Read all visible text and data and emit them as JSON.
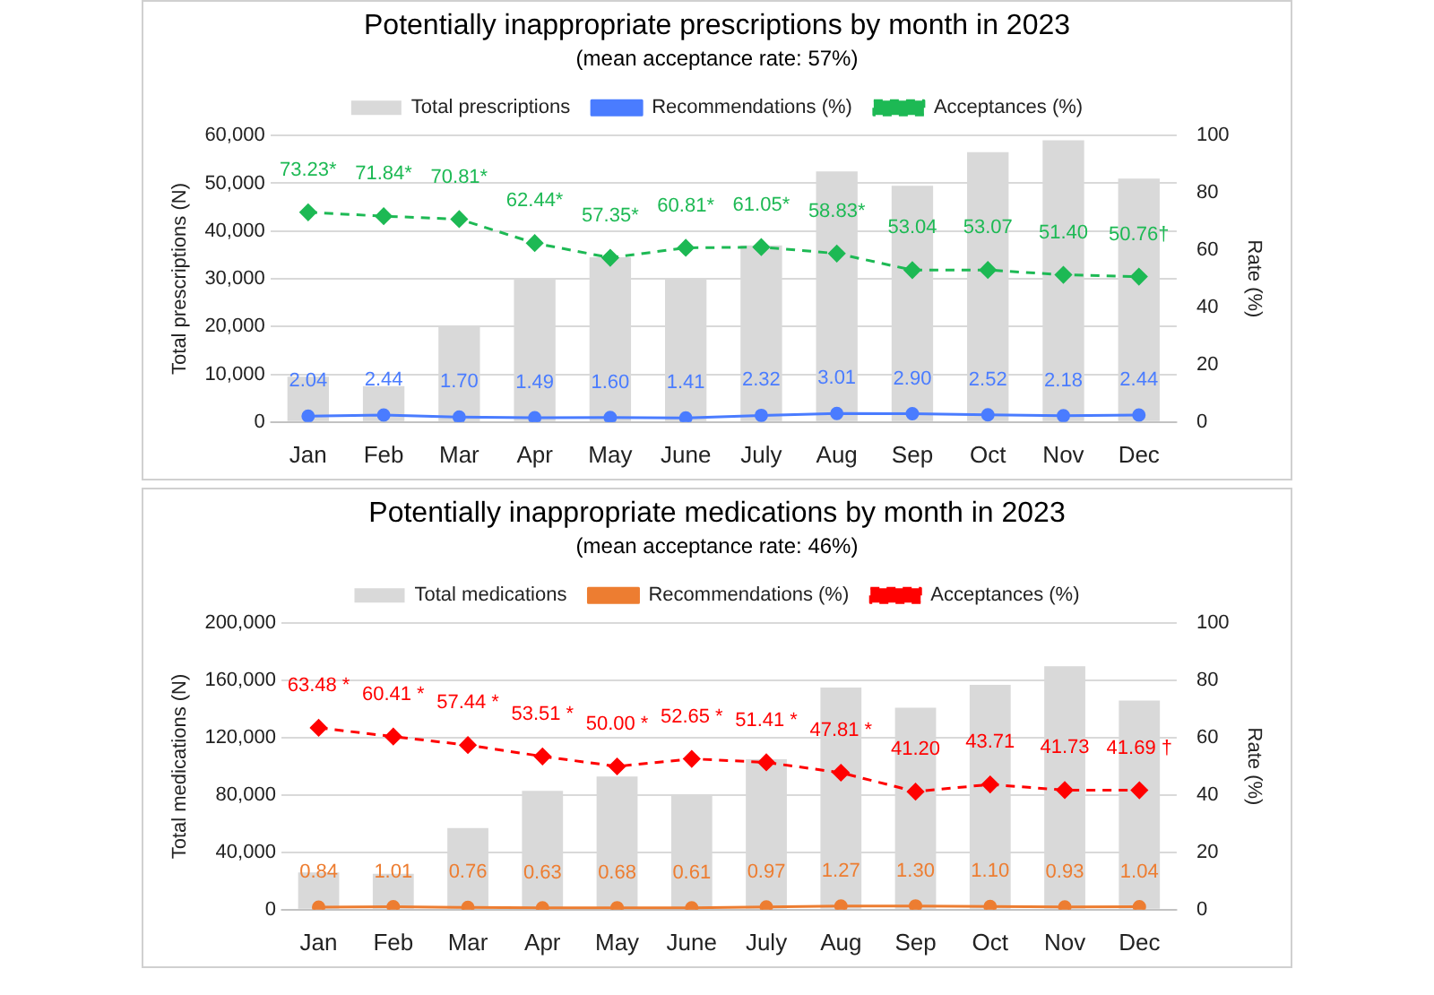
{
  "chart_data": [
    {
      "type": "bar",
      "title": "Potentially inappropriate prescriptions by month in 2023",
      "subtitle": "(mean acceptance rate: 57%)",
      "ylabel": "Total prescriptions (N)",
      "y2label": "Rate (%)",
      "categories": [
        "Jan",
        "Feb",
        "Mar",
        "Apr",
        "May",
        "June",
        "July",
        "Aug",
        "Sep",
        "Oct",
        "Nov",
        "Dec"
      ],
      "series": [
        {
          "name": "Total prescriptions",
          "color": "#d9d9d9",
          "values": [
            9500,
            7500,
            20000,
            30000,
            34500,
            30000,
            37000,
            52500,
            49500,
            56500,
            59000,
            51000
          ]
        },
        {
          "name": "Recommendations (%)",
          "type": "line",
          "axis": "y2",
          "color": "#4a7cff",
          "marker": "circle",
          "line_style": "solid",
          "values": [
            2.04,
            2.44,
            1.7,
            1.49,
            1.6,
            1.41,
            2.32,
            3.01,
            2.9,
            2.52,
            2.18,
            2.44
          ],
          "value_labels": [
            "2.04",
            "2.44",
            "1.70",
            "1.49",
            "1.60",
            "1.41",
            "2.32",
            "3.01",
            "2.90",
            "2.52",
            "2.18",
            "2.44"
          ]
        },
        {
          "name": "Acceptances (%)",
          "type": "line",
          "axis": "y2",
          "color": "#1db954",
          "marker": "diamond",
          "line_style": "dashed",
          "values": [
            73.23,
            71.84,
            70.81,
            62.44,
            57.35,
            60.81,
            61.05,
            58.83,
            53.04,
            53.07,
            51.4,
            50.76
          ],
          "value_labels": [
            "73.23*",
            "71.84*",
            "70.81*",
            "62.44*",
            "57.35*",
            "60.81*",
            "61.05*",
            "58.83*",
            "53.04",
            "53.07",
            "51.40",
            "50.76†"
          ]
        }
      ],
      "ylim": [
        0,
        60000
      ],
      "yticks": [
        {
          "value": 0,
          "label": "0"
        },
        {
          "value": 10000,
          "label": "10,000"
        },
        {
          "value": 20000,
          "label": "20,000"
        },
        {
          "value": 30000,
          "label": "30,000"
        },
        {
          "value": 40000,
          "label": "40,000"
        },
        {
          "value": 50000,
          "label": "50,000"
        },
        {
          "value": 60000,
          "label": "60,000"
        }
      ],
      "y2lim": [
        0,
        100
      ],
      "y2ticks": [
        0,
        20,
        40,
        60,
        80,
        100
      ],
      "grid": "y",
      "legend": "top"
    },
    {
      "type": "bar",
      "title": "Potentially inappropriate medications by month in 2023",
      "subtitle": "(mean acceptance rate: 46%)",
      "ylabel": "Total medications (N)",
      "y2label": "Rate (%)",
      "categories": [
        "Jan",
        "Feb",
        "Mar",
        "Apr",
        "May",
        "June",
        "July",
        "Aug",
        "Sep",
        "Oct",
        "Nov",
        "Dec"
      ],
      "series": [
        {
          "name": "Total medications",
          "color": "#d9d9d9",
          "values": [
            26000,
            25000,
            57000,
            83000,
            93000,
            80000,
            105000,
            155000,
            141000,
            157000,
            170000,
            146000
          ]
        },
        {
          "name": "Recommendations (%)",
          "type": "line",
          "axis": "y2",
          "color": "#ed7d31",
          "marker": "circle",
          "line_style": "solid",
          "values": [
            0.84,
            1.01,
            0.76,
            0.63,
            0.68,
            0.61,
            0.97,
            1.27,
            1.3,
            1.1,
            0.93,
            1.04
          ],
          "value_labels": [
            "0.84",
            "1.01",
            "0.76",
            "0.63",
            "0.68",
            "0.61",
            "0.97",
            "1.27",
            "1.30",
            "1.10",
            "0.93",
            "1.04"
          ]
        },
        {
          "name": "Acceptances (%)",
          "type": "line",
          "axis": "y2",
          "color": "#ff0000",
          "marker": "diamond",
          "line_style": "dashed",
          "values": [
            63.48,
            60.41,
            57.44,
            53.51,
            50.0,
            52.65,
            51.41,
            47.81,
            41.2,
            43.71,
            41.73,
            41.69
          ],
          "value_labels": [
            "63.48 *",
            "60.41 *",
            "57.44 *",
            "53.51 *",
            "50.00 *",
            "52.65 *",
            "51.41 *",
            "47.81 *",
            "41.20",
            "43.71",
            "41.73",
            "41.69 †"
          ]
        }
      ],
      "ylim": [
        0,
        200000
      ],
      "yticks": [
        {
          "value": 0,
          "label": "0"
        },
        {
          "value": 40000,
          "label": "40,000"
        },
        {
          "value": 80000,
          "label": "80,000"
        },
        {
          "value": 120000,
          "label": "120,000"
        },
        {
          "value": 160000,
          "label": "160,000"
        },
        {
          "value": 200000,
          "label": "200,000"
        }
      ],
      "y2lim": [
        0,
        100
      ],
      "y2ticks": [
        0,
        20,
        40,
        60,
        80,
        100
      ],
      "grid": "y",
      "legend": "top"
    }
  ]
}
